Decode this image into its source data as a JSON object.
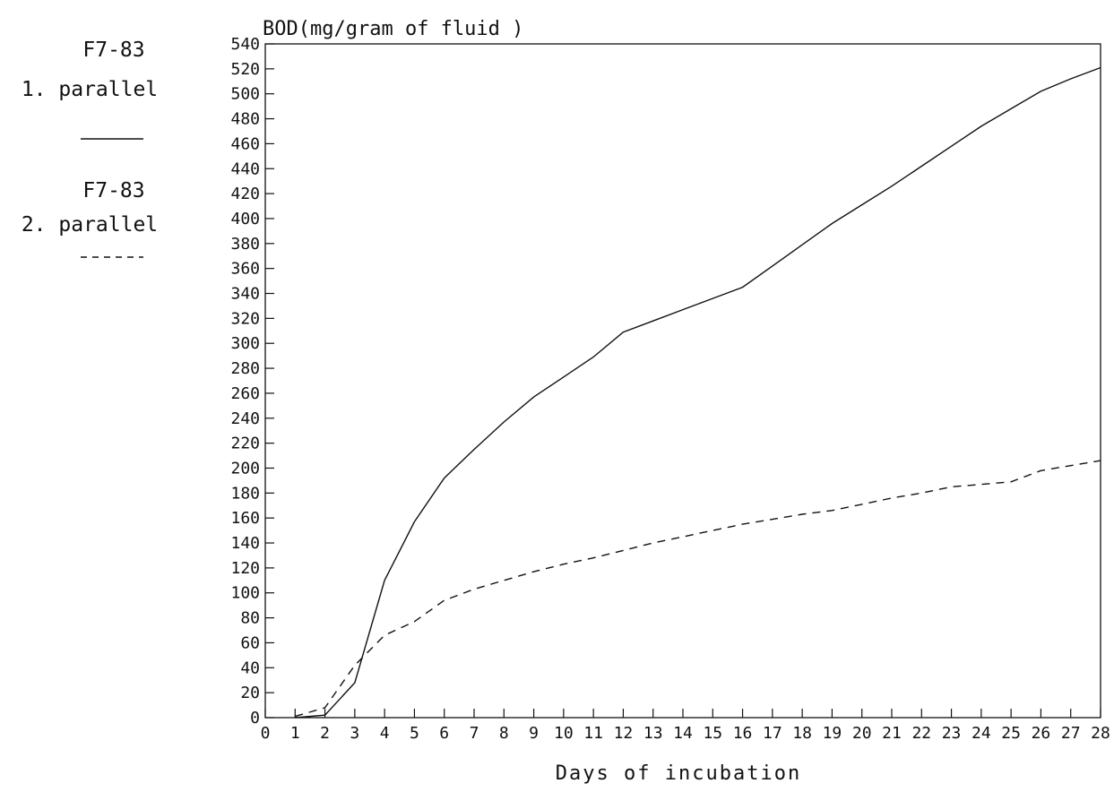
{
  "chart_data": {
    "type": "line",
    "ylabel": "BOD(mg/gram of fluid )",
    "xlabel": "Days of incubation",
    "xlim": [
      0,
      28
    ],
    "ylim": [
      0,
      540
    ],
    "xticks": [
      0,
      1,
      2,
      3,
      4,
      5,
      6,
      7,
      8,
      9,
      10,
      11,
      12,
      13,
      14,
      15,
      16,
      17,
      18,
      19,
      20,
      21,
      22,
      23,
      24,
      25,
      26,
      27,
      28
    ],
    "yticks": [
      0,
      20,
      40,
      60,
      80,
      100,
      120,
      140,
      160,
      180,
      200,
      220,
      240,
      260,
      280,
      300,
      320,
      340,
      360,
      380,
      400,
      420,
      440,
      460,
      480,
      500,
      520,
      540
    ],
    "grid": false,
    "legend_position": "left",
    "series": [
      {
        "name_line1": "F7-83",
        "name_line2": "1. parallel",
        "style": "solid",
        "x": [
          1,
          2,
          3,
          4,
          5,
          6,
          7,
          8,
          9,
          10,
          11,
          12,
          13,
          14,
          15,
          16,
          17,
          18,
          19,
          20,
          21,
          22,
          23,
          24,
          25,
          26,
          27,
          28
        ],
        "y": [
          0,
          2,
          28,
          110,
          157,
          192,
          215,
          237,
          257,
          273,
          289,
          309,
          318,
          327,
          336,
          345,
          362,
          379,
          396,
          411,
          426,
          442,
          458,
          474,
          488,
          502,
          512,
          521
        ]
      },
      {
        "name_line1": "F7-83",
        "name_line2": "2. parallel",
        "style": "dashed",
        "x": [
          1,
          2,
          3,
          4,
          5,
          6,
          7,
          8,
          9,
          10,
          11,
          12,
          13,
          14,
          15,
          16,
          17,
          18,
          19,
          20,
          21,
          22,
          23,
          24,
          25,
          26,
          27,
          28
        ],
        "y": [
          1,
          8,
          42,
          66,
          77,
          94,
          103,
          110,
          117,
          123,
          128,
          134,
          140,
          145,
          150,
          155,
          159,
          163,
          166,
          171,
          176,
          180,
          185,
          187,
          189,
          198,
          202,
          206
        ]
      }
    ]
  }
}
